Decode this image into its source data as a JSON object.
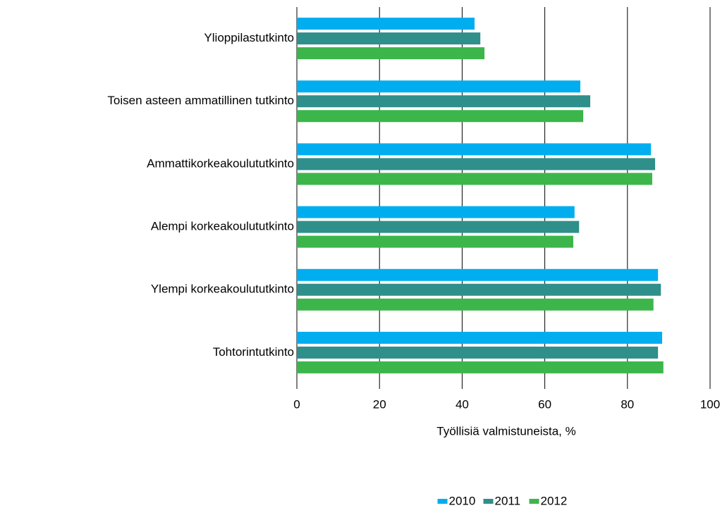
{
  "chart_data": {
    "type": "hbar",
    "categories": [
      "Ylioppilastutkinto",
      "Toisen asteen ammatillinen tutkinto",
      "Ammattikorkeakoulututkinto",
      "Alempi korkeakoulututkinto",
      "Ylempi korkeakoulututkinto",
      "Tohtorintutkinto"
    ],
    "series": [
      {
        "name": "2010",
        "color": "#00aeef",
        "values": [
          43.0,
          68.6,
          85.7,
          67.2,
          87.4,
          88.4
        ]
      },
      {
        "name": "2011",
        "color": "#2f8f8a",
        "values": [
          44.4,
          71.0,
          86.7,
          68.3,
          88.1,
          87.4
        ]
      },
      {
        "name": "2012",
        "color": "#3cb64a",
        "values": [
          45.4,
          69.3,
          86.0,
          66.9,
          86.3,
          88.7
        ]
      }
    ],
    "x_label": "Työllisiä valmistuneista, %",
    "xlim": [
      0,
      100
    ],
    "xticks": [
      0,
      20,
      40,
      60,
      80,
      100
    ],
    "grid": true,
    "legend": "bottom"
  }
}
